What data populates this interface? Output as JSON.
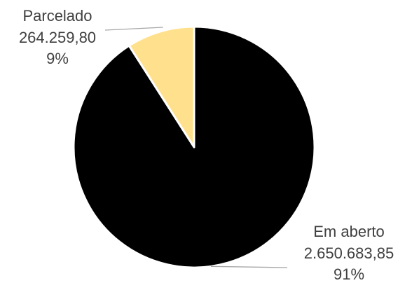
{
  "chart_data": {
    "type": "pie",
    "title": "",
    "slices": [
      {
        "label": "Em aberto",
        "value_text": "2.650.683,85",
        "value": 2650683.85,
        "percent_text": "91%",
        "percent": 91,
        "color": "#000000"
      },
      {
        "label": "Parcelado",
        "value_text": "264.259,80",
        "value": 264259.8,
        "percent_text": "9%",
        "percent": 9,
        "color": "#FFE08C"
      }
    ],
    "legend": "none",
    "data_labels": "outside with leader lines",
    "label_color": "#404040"
  }
}
